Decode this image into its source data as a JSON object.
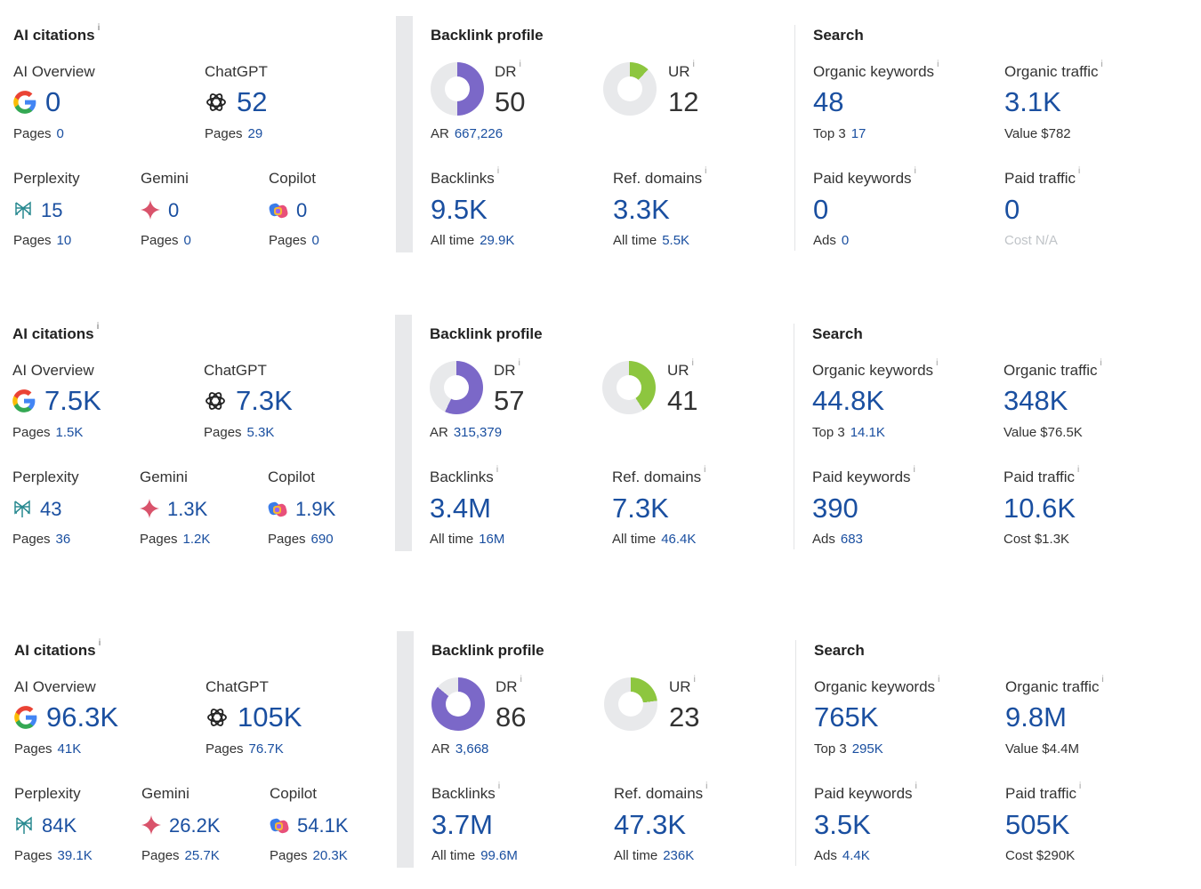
{
  "labels": {
    "ai_citations": "AI citations",
    "ai_overview": "AI Overview",
    "chatgpt": "ChatGPT",
    "perplexity": "Perplexity",
    "gemini": "Gemini",
    "copilot": "Copilot",
    "pages": "Pages",
    "backlink_profile": "Backlink profile",
    "dr": "DR",
    "ur": "UR",
    "ar": "AR",
    "backlinks": "Backlinks",
    "ref_domains": "Ref. domains",
    "all_time": "All time",
    "search": "Search",
    "organic_keywords": "Organic keywords",
    "organic_traffic": "Organic traffic",
    "top3": "Top 3",
    "value": "Value",
    "paid_keywords": "Paid keywords",
    "paid_traffic": "Paid traffic",
    "ads": "Ads",
    "cost": "Cost",
    "info": "i"
  },
  "colors": {
    "dr_fill": "#7b68c8",
    "ur_fill": "#8dc63f",
    "ring_bg": "#e8e9eb",
    "link_blue": "#1a4fa0"
  },
  "icons": [
    "google-icon",
    "chatgpt-icon",
    "perplexity-icon",
    "gemini-icon",
    "copilot-icon",
    "info-icon"
  ],
  "rows": [
    {
      "ai": {
        "ai_overview": "0",
        "ai_overview_pages": "0",
        "chatgpt": "52",
        "chatgpt_pages": "29",
        "perplexity": "15",
        "perplexity_pages": "10",
        "gemini": "0",
        "gemini_pages": "0",
        "copilot": "0",
        "copilot_pages": "0"
      },
      "backlink": {
        "dr": "50",
        "dr_pct": 50,
        "ur": "12",
        "ur_pct": 12,
        "ar": "667,226",
        "backlinks": "9.5K",
        "backlinks_all_time": "29.9K",
        "ref_domains": "3.3K",
        "ref_domains_all_time": "5.5K"
      },
      "search": {
        "organic_keywords": "48",
        "top3": "17",
        "organic_traffic": "3.1K",
        "value": "$782",
        "paid_keywords": "0",
        "ads": "0",
        "paid_traffic": "0",
        "cost": "N/A"
      }
    },
    {
      "ai": {
        "ai_overview": "7.5K",
        "ai_overview_pages": "1.5K",
        "chatgpt": "7.3K",
        "chatgpt_pages": "5.3K",
        "perplexity": "43",
        "perplexity_pages": "36",
        "gemini": "1.3K",
        "gemini_pages": "1.2K",
        "copilot": "1.9K",
        "copilot_pages": "690"
      },
      "backlink": {
        "dr": "57",
        "dr_pct": 57,
        "ur": "41",
        "ur_pct": 41,
        "ar": "315,379",
        "backlinks": "3.4M",
        "backlinks_all_time": "16M",
        "ref_domains": "7.3K",
        "ref_domains_all_time": "46.4K"
      },
      "search": {
        "organic_keywords": "44.8K",
        "top3": "14.1K",
        "organic_traffic": "348K",
        "value": "$76.5K",
        "paid_keywords": "390",
        "ads": "683",
        "paid_traffic": "10.6K",
        "cost": "$1.3K"
      }
    },
    {
      "ai": {
        "ai_overview": "96.3K",
        "ai_overview_pages": "41K",
        "chatgpt": "105K",
        "chatgpt_pages": "76.7K",
        "perplexity": "84K",
        "perplexity_pages": "39.1K",
        "gemini": "26.2K",
        "gemini_pages": "25.7K",
        "copilot": "54.1K",
        "copilot_pages": "20.3K"
      },
      "backlink": {
        "dr": "86",
        "dr_pct": 86,
        "ur": "23",
        "ur_pct": 23,
        "ar": "3,668",
        "backlinks": "3.7M",
        "backlinks_all_time": "99.6M",
        "ref_domains": "47.3K",
        "ref_domains_all_time": "236K"
      },
      "search": {
        "organic_keywords": "765K",
        "top3": "295K",
        "organic_traffic": "9.8M",
        "value": "$4.4M",
        "paid_keywords": "3.5K",
        "ads": "4.4K",
        "paid_traffic": "505K",
        "cost": "$290K"
      }
    }
  ]
}
